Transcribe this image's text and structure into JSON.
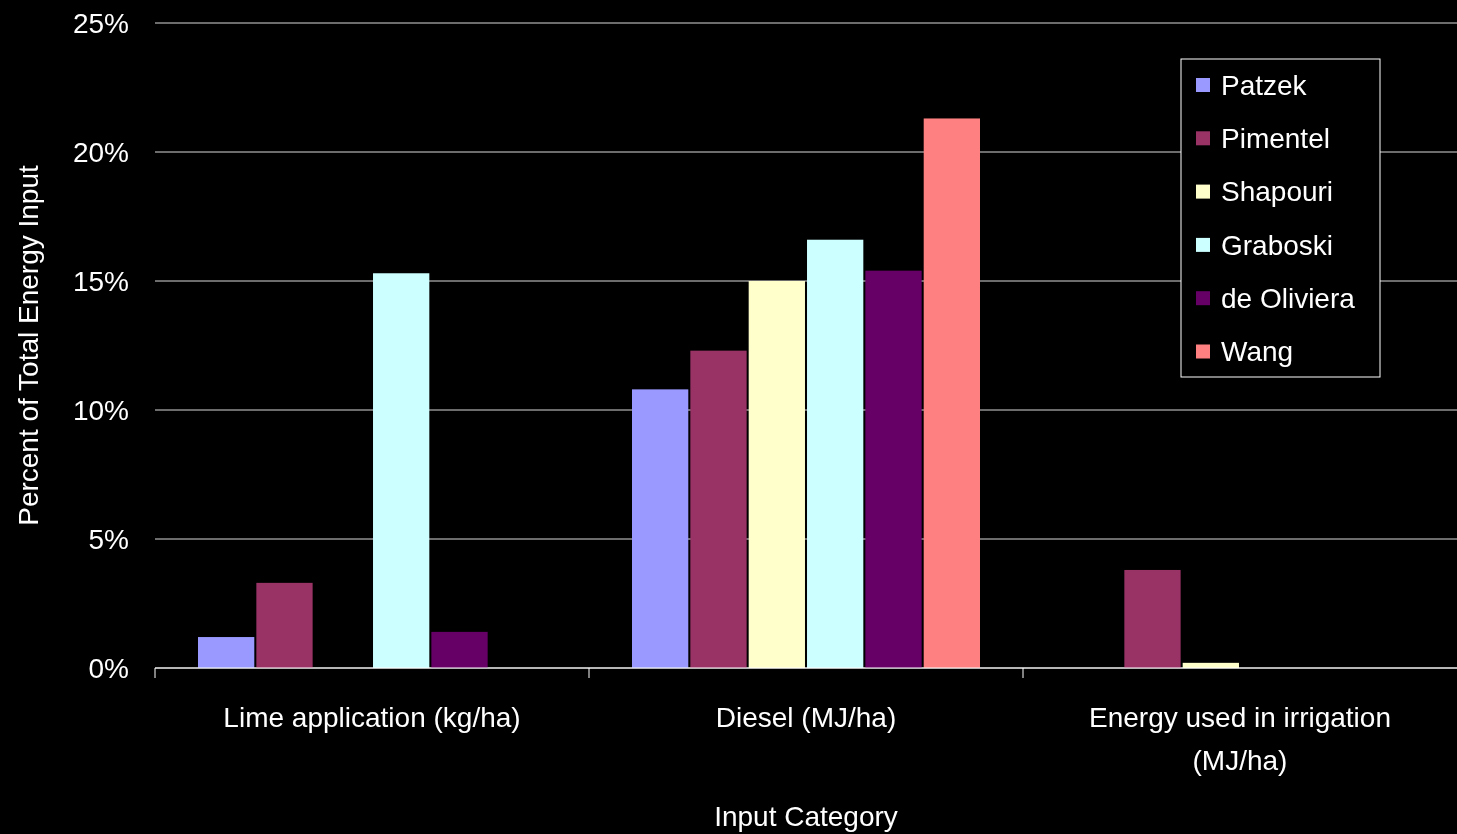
{
  "chart_data": {
    "type": "bar",
    "xlabel": "Input Category",
    "ylabel": "Percent of Total Energy Input",
    "categories": [
      "Lime application (kg/ha)",
      "Diesel (MJ/ha)",
      "Energy used in irrigation (MJ/ha)"
    ],
    "series": [
      {
        "name": "Patzek",
        "color": "#9999ff",
        "values": [
          1.2,
          10.8,
          null
        ]
      },
      {
        "name": "Pimentel",
        "color": "#993366",
        "values": [
          3.3,
          12.3,
          3.8
        ]
      },
      {
        "name": "Shapouri",
        "color": "#ffffcc",
        "values": [
          null,
          15.0,
          0.2
        ]
      },
      {
        "name": "Graboski",
        "color": "#ccffff",
        "values": [
          15.3,
          16.6,
          null
        ]
      },
      {
        "name": "de Oliviera",
        "color": "#660066",
        "values": [
          1.4,
          15.4,
          null
        ]
      },
      {
        "name": "Wang",
        "color": "#ff8080",
        "values": [
          null,
          21.3,
          null
        ]
      }
    ],
    "ylim": [
      0,
      25
    ],
    "yticks": [
      {
        "value": 0,
        "label": "0%"
      },
      {
        "value": 5,
        "label": "5%"
      },
      {
        "value": 10,
        "label": "10%"
      },
      {
        "value": 15,
        "label": "15%"
      },
      {
        "value": 20,
        "label": "20%"
      },
      {
        "value": 25,
        "label": "25%"
      }
    ],
    "grid": "y",
    "legend": "top right"
  }
}
